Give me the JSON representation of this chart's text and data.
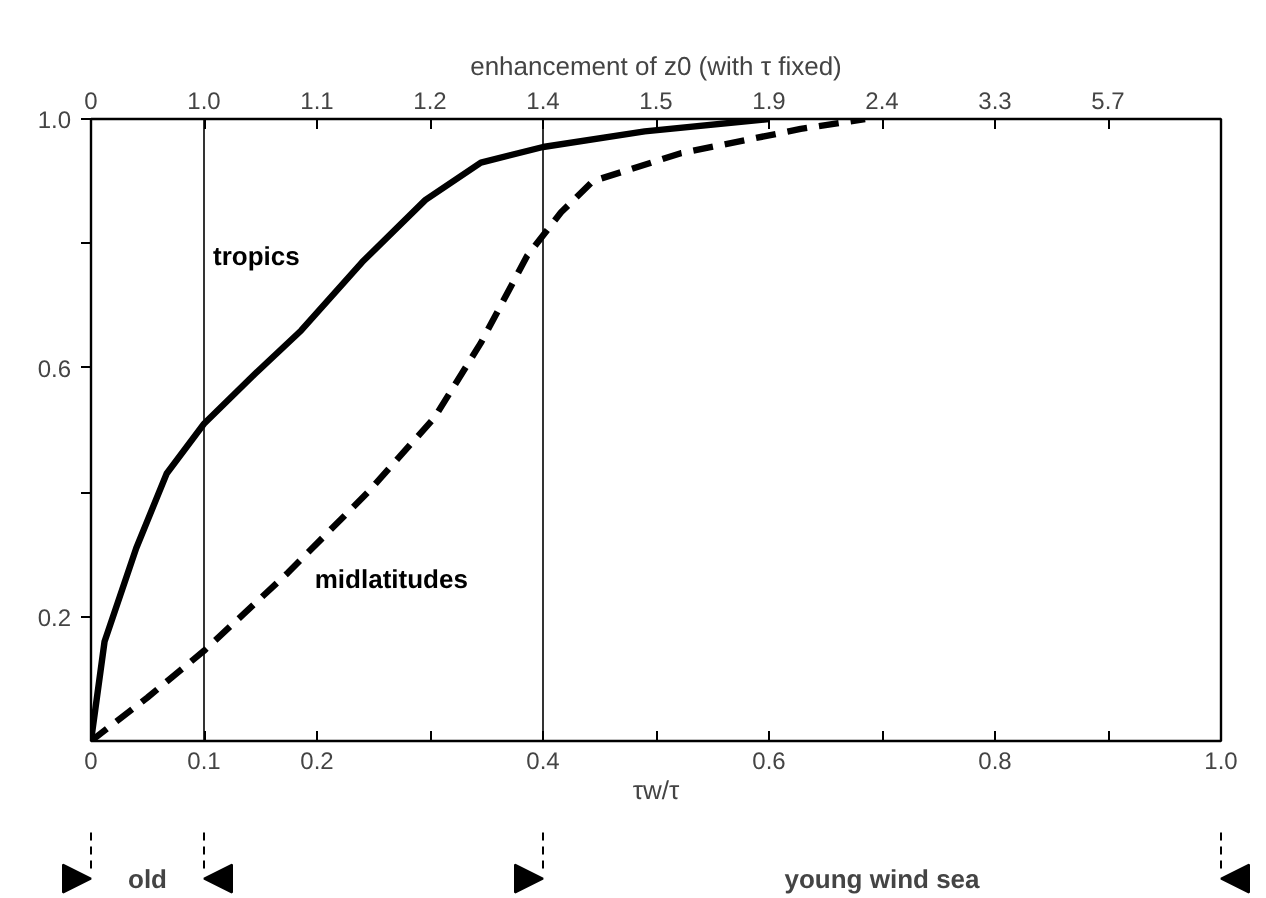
{
  "chart_data": {
    "type": "line",
    "x2label": "enhancement of z0 (with τ fixed)",
    "xlabel": "τw/τ",
    "xlim": [
      0,
      1
    ],
    "ylim": [
      0,
      1
    ],
    "xticks": [
      0,
      0.1,
      0.2,
      {
        "value": 0.3,
        "label": null
      },
      0.4,
      {
        "value": 0.5,
        "label": null
      },
      0.6,
      {
        "value": 0.7,
        "label": null
      },
      0.8,
      {
        "value": 0.9,
        "label": null
      },
      {
        "value": 1,
        "label": "1.0"
      }
    ],
    "yticks": [
      0.2,
      {
        "value": 0.4,
        "label": null
      },
      0.6,
      {
        "value": 0.8,
        "label": null
      },
      {
        "value": 1,
        "label": "1.0"
      }
    ],
    "grid": false,
    "marker": "none",
    "series": [
      {
        "name": "tropics",
        "color": "#000000",
        "line_style": "solid",
        "x": [
          0,
          0.012,
          0.04,
          0.067,
          0.1,
          0.145,
          0.186,
          0.24,
          0.296,
          0.345,
          0.4,
          0.49,
          0.6
        ],
        "values": [
          0,
          0.16,
          0.31,
          0.43,
          0.51,
          0.59,
          0.66,
          0.77,
          0.87,
          0.93,
          0.955,
          0.98,
          1.0
        ]
      },
      {
        "name": "midlatitudes",
        "color": "#000000",
        "line_style": "dashed",
        "x": [
          0,
          0.05,
          0.1,
          0.174,
          0.245,
          0.304,
          0.345,
          0.386,
          0.416,
          0.444,
          0.522,
          0.628,
          0.685
        ],
        "values": [
          0,
          0.07,
          0.145,
          0.27,
          0.4,
          0.52,
          0.64,
          0.78,
          0.85,
          0.9,
          0.945,
          0.984,
          1.0
        ]
      }
    ],
    "ref_lines": [
      {
        "axis": "x",
        "value": 0.1,
        "color": "#000000"
      },
      {
        "axis": "x",
        "value": 0.4,
        "color": "#000000"
      }
    ],
    "annotations": [
      "0",
      "1.0",
      "1.1",
      "1.2",
      "1.4",
      "1.5",
      "1.9",
      "2.4",
      "3.3",
      "5.7",
      "old",
      "young wind sea"
    ]
  }
}
